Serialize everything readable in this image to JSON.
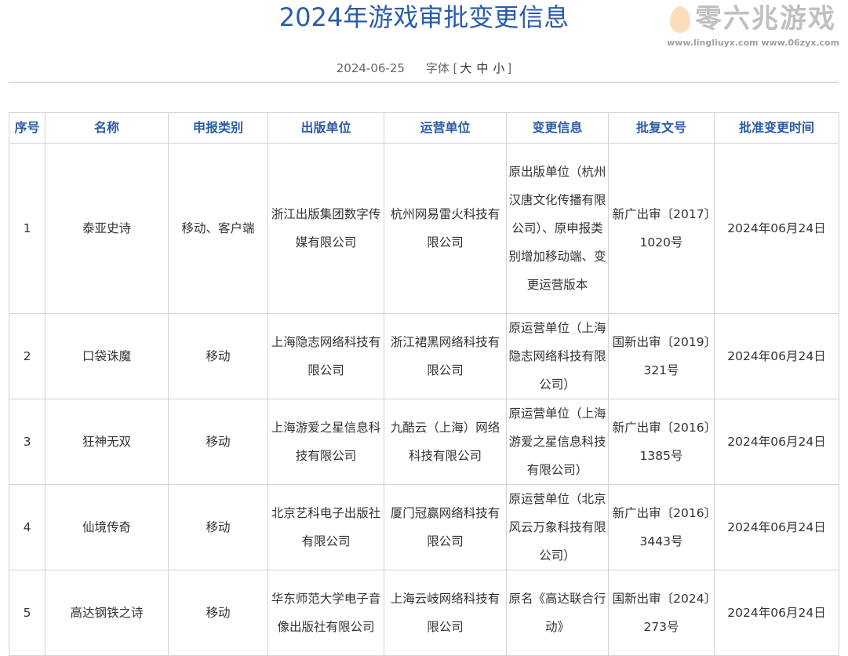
{
  "title": "2024年游戏审批变更信息",
  "meta": {
    "date": "2024-06-25",
    "font_label": "字体",
    "sizes": [
      "大",
      "中",
      "小"
    ]
  },
  "table": {
    "headers": [
      "序号",
      "名称",
      "申报类别",
      "出版单位",
      "运营单位",
      "变更信息",
      "批复文号",
      "批准变更时间"
    ],
    "rows": [
      [
        "1",
        "泰亚史诗",
        "移动、客户端",
        "浙江出版集团数字传媒有限公司",
        "杭州网易雷火科技有限公司",
        "原出版单位（杭州汉唐文化传播有限公司）、原申报类别增加移动端、变更运营版本",
        "新广出审〔2017〕1020号",
        "2024年06月24日"
      ],
      [
        "2",
        "口袋诛魔",
        "移动",
        "上海隐志网络科技有限公司",
        "浙江裙黑网络科技有限公司",
        "原运营单位（上海隐志网络科技有限公司）",
        "国新出审〔2019〕321号",
        "2024年06月24日"
      ],
      [
        "3",
        "狂神无双",
        "移动",
        "上海游爱之星信息科技有限公司",
        "九酷云（上海）网络科技有限公司",
        "原运营单位（上海游爱之星信息科技有限公司）",
        "新广出审〔2016〕1385号",
        "2024年06月24日"
      ],
      [
        "4",
        "仙境传奇",
        "移动",
        "北京艺科电子出版社有限公司",
        "厦门冠赢网络科技有限公司",
        "原运营单位（北京风云万象科技有限公司）",
        "新广出审〔2016〕3443号",
        "2024年06月24日"
      ],
      [
        "5",
        "高达钢铁之诗",
        "移动",
        "华东师范大学电子音像出版社有限公司",
        "上海云岐网络科技有限公司",
        "原名《高达联合行动》",
        "国新出审〔2024〕273号",
        "2024年06月24日"
      ]
    ]
  },
  "watermark": {
    "name": "零六兆游戏",
    "urls": "www.lingliuyx.com  www.06zyx.com"
  }
}
